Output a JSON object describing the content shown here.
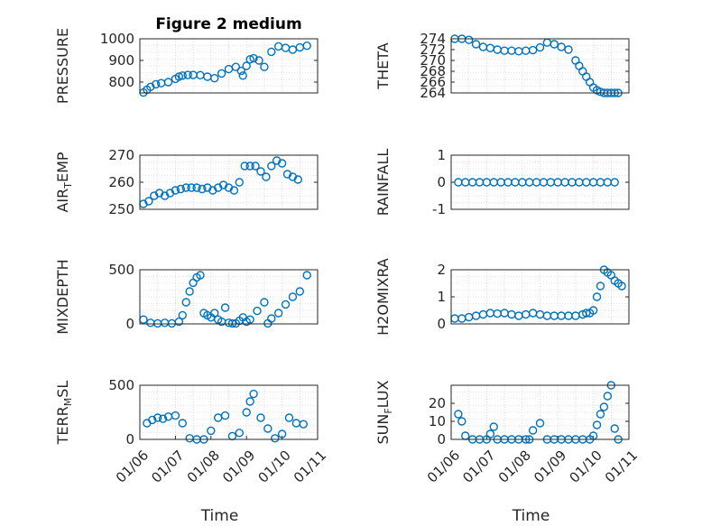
{
  "colors": {
    "marker": "#0072BD",
    "axis": "#262626",
    "grid": "#c8c8c8"
  },
  "chart_data": [
    {
      "type": "scatter",
      "title": "Figure 2 medium",
      "xlabel": "",
      "ylabel": "PRESSURE",
      "ylim": [
        750,
        1000
      ],
      "yticks": [
        800,
        900,
        1000
      ],
      "yticklabels": [
        "800",
        "900",
        "1000"
      ],
      "xlim": [
        0,
        5
      ],
      "xticks": [],
      "xticklabels": [],
      "x": [
        0.1,
        0.2,
        0.3,
        0.45,
        0.6,
        0.8,
        1.0,
        1.1,
        1.2,
        1.35,
        1.5,
        1.7,
        1.9,
        2.1,
        2.3,
        2.5,
        2.7,
        2.85,
        2.9,
        3.0,
        3.1,
        3.2,
        3.35,
        3.5,
        3.7,
        3.9,
        4.1,
        4.3,
        4.5,
        4.7
      ],
      "y": [
        752,
        765,
        778,
        790,
        795,
        800,
        815,
        825,
        830,
        833,
        833,
        832,
        825,
        818,
        840,
        860,
        870,
        852,
        830,
        875,
        905,
        910,
        900,
        870,
        940,
        965,
        958,
        950,
        960,
        968
      ]
    },
    {
      "type": "scatter",
      "title": "",
      "xlabel": "",
      "ylabel": "THETA",
      "ylim": [
        264,
        274
      ],
      "yticks": [
        264,
        266,
        268,
        270,
        272,
        274
      ],
      "yticklabels": [
        "264",
        "266",
        "268",
        "270",
        "272",
        "274"
      ],
      "xlim": [
        0,
        5
      ],
      "xticks": [],
      "xticklabels": [],
      "x": [
        0.1,
        0.3,
        0.5,
        0.7,
        0.9,
        1.1,
        1.3,
        1.5,
        1.7,
        1.9,
        2.1,
        2.3,
        2.5,
        2.7,
        2.9,
        3.1,
        3.3,
        3.5,
        3.6,
        3.7,
        3.8,
        3.9,
        4.0,
        4.1,
        4.2,
        4.3,
        4.4,
        4.5,
        4.6,
        4.7
      ],
      "y": [
        274,
        274,
        273.8,
        273,
        272.5,
        272.3,
        272,
        271.8,
        271.8,
        271.7,
        271.8,
        271.9,
        272.4,
        273.3,
        273,
        272.5,
        272,
        270,
        269,
        268,
        267,
        266,
        265,
        264.5,
        264.2,
        264,
        264,
        264,
        264,
        264
      ]
    },
    {
      "type": "scatter",
      "title": "",
      "xlabel": "",
      "ylabel": "AIR_TEMP",
      "ylim": [
        250,
        270
      ],
      "yticks": [
        250,
        260,
        270
      ],
      "yticklabels": [
        "250",
        "260",
        "270"
      ],
      "xlim": [
        0,
        5
      ],
      "xticks": [],
      "xticklabels": [],
      "x": [
        0.1,
        0.25,
        0.4,
        0.55,
        0.7,
        0.85,
        1.0,
        1.15,
        1.3,
        1.45,
        1.6,
        1.75,
        1.9,
        2.05,
        2.2,
        2.35,
        2.5,
        2.65,
        2.8,
        2.95,
        3.1,
        3.25,
        3.4,
        3.55,
        3.7,
        3.85,
        4.0,
        4.15,
        4.3,
        4.45
      ],
      "y": [
        252,
        253,
        255,
        256,
        255,
        256,
        257,
        257.5,
        258,
        258,
        258,
        257.5,
        258,
        257,
        258,
        259,
        258,
        257,
        260,
        266,
        266,
        266,
        264,
        262,
        266,
        268,
        267,
        263,
        262,
        261
      ]
    },
    {
      "type": "scatter",
      "title": "",
      "xlabel": "",
      "ylabel": "RAINFALL",
      "ylim": [
        -1,
        1
      ],
      "yticks": [
        -1,
        0,
        1
      ],
      "yticklabels": [
        "-1",
        "0",
        "1"
      ],
      "xlim": [
        0,
        5
      ],
      "xticks": [],
      "xticklabels": [],
      "x": [
        0.2,
        0.4,
        0.6,
        0.8,
        1.0,
        1.2,
        1.4,
        1.6,
        1.8,
        2.0,
        2.2,
        2.4,
        2.6,
        2.8,
        3.0,
        3.2,
        3.4,
        3.6,
        3.8,
        4.0,
        4.2,
        4.4,
        4.6
      ],
      "y": [
        0,
        0,
        0,
        0,
        0,
        0,
        0,
        0,
        0,
        0,
        0,
        0,
        0,
        0,
        0,
        0,
        0,
        0,
        0,
        0,
        0,
        0,
        0
      ]
    },
    {
      "type": "scatter",
      "title": "",
      "xlabel": "",
      "ylabel": "MIXDEPTH",
      "ylim": [
        0,
        500
      ],
      "yticks": [
        0,
        500
      ],
      "yticklabels": [
        "0",
        "500"
      ],
      "xlim": [
        0,
        5
      ],
      "xticks": [],
      "xticklabels": [],
      "x": [
        0.1,
        0.3,
        0.5,
        0.7,
        0.9,
        1.1,
        1.2,
        1.3,
        1.4,
        1.5,
        1.6,
        1.7,
        1.8,
        1.9,
        2.0,
        2.1,
        2.2,
        2.3,
        2.4,
        2.5,
        2.6,
        2.7,
        2.8,
        2.9,
        3.0,
        3.1,
        3.3,
        3.5,
        3.6,
        3.7,
        3.9,
        4.1,
        4.3,
        4.5,
        4.7
      ],
      "y": [
        40,
        10,
        5,
        10,
        5,
        20,
        80,
        200,
        300,
        380,
        430,
        450,
        100,
        80,
        60,
        100,
        40,
        20,
        150,
        10,
        5,
        5,
        30,
        60,
        20,
        40,
        120,
        200,
        5,
        50,
        100,
        180,
        250,
        300,
        450
      ]
    },
    {
      "type": "scatter",
      "title": "",
      "xlabel": "",
      "ylabel": "H2OMIXRA",
      "ylim": [
        0,
        2
      ],
      "yticks": [
        0,
        1,
        2
      ],
      "yticklabels": [
        "0",
        "1",
        "2"
      ],
      "xlim": [
        0,
        5
      ],
      "xticks": [],
      "xticklabels": [],
      "x": [
        0.1,
        0.3,
        0.5,
        0.7,
        0.9,
        1.1,
        1.3,
        1.5,
        1.7,
        1.9,
        2.1,
        2.3,
        2.5,
        2.7,
        2.9,
        3.1,
        3.3,
        3.5,
        3.7,
        3.8,
        3.9,
        4.0,
        4.1,
        4.2,
        4.3,
        4.4,
        4.5,
        4.6,
        4.7,
        4.8
      ],
      "y": [
        0.2,
        0.2,
        0.25,
        0.3,
        0.35,
        0.4,
        0.38,
        0.4,
        0.35,
        0.3,
        0.35,
        0.4,
        0.35,
        0.3,
        0.3,
        0.3,
        0.3,
        0.3,
        0.35,
        0.4,
        0.4,
        0.5,
        1.0,
        1.4,
        2.0,
        1.9,
        1.8,
        1.6,
        1.5,
        1.4
      ]
    },
    {
      "type": "scatter",
      "title": "",
      "xlabel": "Time",
      "ylabel": "TERR_MSL",
      "ylim": [
        0,
        500
      ],
      "yticks": [
        0,
        500
      ],
      "yticklabels": [
        "0",
        "500"
      ],
      "xlim": [
        0,
        5
      ],
      "xticks": [
        0,
        1,
        2,
        3,
        4,
        5
      ],
      "xticklabels": [
        "01/06",
        "01/07",
        "01/08",
        "01/09",
        "01/10",
        "01/11"
      ],
      "x": [
        0.2,
        0.35,
        0.5,
        0.65,
        0.8,
        1.0,
        1.2,
        1.4,
        1.6,
        1.8,
        2.0,
        2.2,
        2.4,
        2.6,
        2.8,
        3.0,
        3.1,
        3.2,
        3.4,
        3.6,
        3.8,
        4.0,
        4.2,
        4.4,
        4.6
      ],
      "y": [
        150,
        180,
        200,
        190,
        210,
        220,
        150,
        10,
        0,
        0,
        80,
        200,
        220,
        30,
        60,
        250,
        350,
        420,
        200,
        100,
        10,
        50,
        200,
        150,
        140
      ]
    },
    {
      "type": "scatter",
      "title": "",
      "xlabel": "Time",
      "ylabel": "SUN_FLUX",
      "ylim": [
        0,
        30
      ],
      "yticks": [
        0,
        10,
        20
      ],
      "yticklabels": [
        "0",
        "10",
        "20"
      ],
      "xlim": [
        0,
        5
      ],
      "xticks": [
        0,
        1,
        2,
        3,
        4,
        5
      ],
      "xticklabels": [
        "01/06",
        "01/07",
        "01/08",
        "01/09",
        "01/10",
        "01/11"
      ],
      "x": [
        0.2,
        0.3,
        0.4,
        0.6,
        0.8,
        1.0,
        1.1,
        1.2,
        1.3,
        1.5,
        1.7,
        1.9,
        2.1,
        2.2,
        2.3,
        2.5,
        2.7,
        2.9,
        3.1,
        3.3,
        3.5,
        3.7,
        3.9,
        4.0,
        4.1,
        4.2,
        4.3,
        4.4,
        4.5,
        4.6,
        4.7
      ],
      "y": [
        14,
        10,
        2,
        0,
        0,
        0,
        3,
        7,
        0,
        0,
        0,
        0,
        0,
        0,
        5,
        9,
        0,
        0,
        0,
        0,
        0,
        0,
        0,
        2,
        8,
        14,
        18,
        24,
        30,
        6,
        0
      ]
    }
  ]
}
